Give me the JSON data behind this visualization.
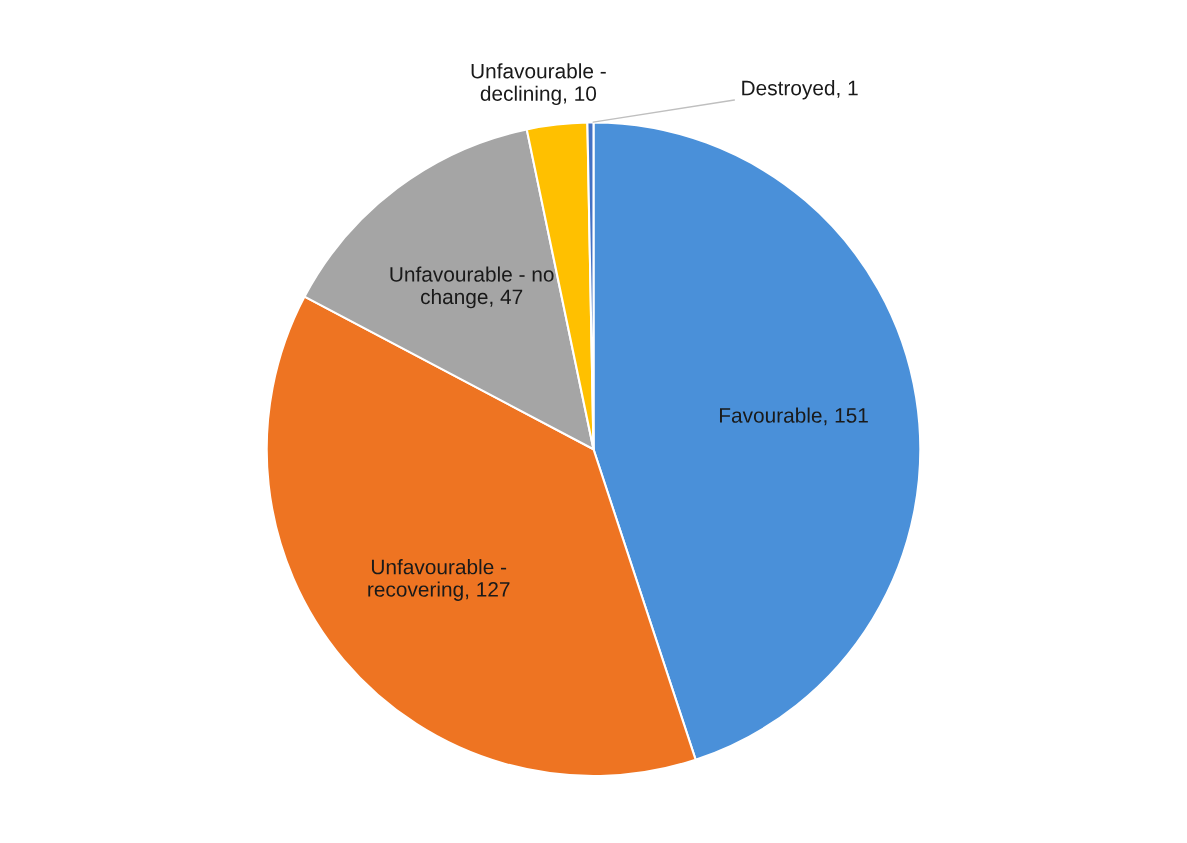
{
  "chart_data": {
    "type": "pie",
    "categories": [
      "Favourable, 151",
      "Unfavourable - recovering, 127",
      "Unfavourable - no change, 47",
      "Unfavourable - declining, 10",
      "Destroyed, 1"
    ],
    "values": [
      151,
      127,
      47,
      10,
      1
    ],
    "colors": [
      "#4a90d9",
      "#ee7422",
      "#a5a5a5",
      "#ffc000",
      "#4472c4"
    ]
  }
}
